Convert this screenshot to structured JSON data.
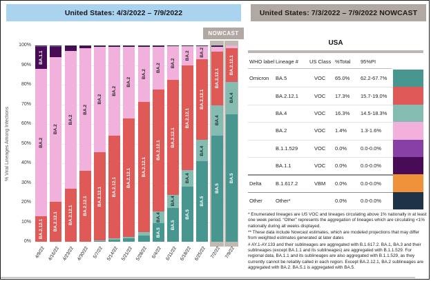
{
  "left_panel": {
    "header": "United States: 4/3/2022 – 7/9/2022",
    "nowcast_label": "NOWCAST",
    "y_axis_label": "% Viral Lineages Among Infections"
  },
  "chart_data": {
    "type": "bar",
    "stacked": true,
    "title": "United States: 4/3/2022 – 7/9/2022",
    "ylabel": "% Viral Lineages Among Infections",
    "ylim": [
      0,
      100
    ],
    "y_tick_step": 10,
    "grid": true,
    "legend_position": "labels inside bar segments",
    "categories": [
      "4/9/22",
      "4/16/22",
      "4/23/22",
      "4/30/22",
      "5/7/22",
      "5/14/22",
      "5/21/22",
      "5/28/22",
      "6/4/22",
      "6/11/22",
      "6/18/22",
      "6/25/22",
      "7/2/22",
      "7/9/22"
    ],
    "nowcast_highlighted_categories": [
      "7/2/22",
      "7/9/22"
    ],
    "label_min_pct": 5.8,
    "series": [
      {
        "name": "BA.5",
        "color": "#479790",
        "label_color": "#ffffff",
        "values": [
          0,
          0,
          0,
          0,
          0.4,
          1.0,
          1.6,
          3.2,
          9.5,
          17.3,
          28.0,
          40.9,
          54.0,
          65.0
        ]
      },
      {
        "name": "BA.4",
        "color": "#84bcb2",
        "label_color": "#1e3330",
        "values": [
          0,
          0,
          0,
          0,
          0.3,
          0.6,
          0.9,
          1.6,
          6.0,
          6.4,
          8.5,
          11.1,
          15.5,
          16.3
        ]
      },
      {
        "name": "BA.2.12.1",
        "color": "#df5956",
        "label_color": "#ffffff",
        "values": [
          13.0,
          20.5,
          27.0,
          36.0,
          45.0,
          52.4,
          60.4,
          66.4,
          62.0,
          58.8,
          53.4,
          41.0,
          27.5,
          17.3
        ]
      },
      {
        "name": "BA.2",
        "color": "#f1b1dc",
        "label_color": "#2a2a2a",
        "values": [
          75.0,
          73.7,
          70.3,
          62.7,
          53.5,
          45.5,
          36.7,
          28.4,
          22.1,
          17.3,
          9.9,
          6.9,
          2.7,
          1.4
        ]
      },
      {
        "name": "BA.1.1",
        "color": "#470c55",
        "label_color": "#ffffff",
        "values": [
          11.5,
          5.4,
          2.4,
          1.1,
          0.6,
          0.3,
          0.2,
          0.2,
          0.2,
          0.1,
          0.1,
          0.0,
          0.1,
          0.0
        ]
      },
      {
        "name": "B.1.1.529",
        "color": "#8740a5",
        "label_color": "#ffffff",
        "values": [
          0.3,
          0.2,
          0.2,
          0.1,
          0.1,
          0.1,
          0.1,
          0.1,
          0.1,
          0.0,
          0.0,
          0.0,
          0.1,
          0.0
        ]
      },
      {
        "name": "Other",
        "color": "#1e3347",
        "label_color": "#ffffff",
        "values": [
          0.2,
          0.2,
          0.1,
          0.1,
          0.1,
          0.1,
          0.1,
          0.1,
          0.1,
          0.1,
          0.1,
          0.1,
          0.1,
          0.0
        ]
      }
    ]
  },
  "right_panel": {
    "header": "United States: 7/3/2022 – 7/9/2022 NOWCAST",
    "table": {
      "region_title": "USA",
      "columns": [
        "WHO label",
        "Lineage #",
        "US Class",
        "%Total",
        "95%PI"
      ],
      "rows": [
        {
          "who_label": "Omicron",
          "lineage": "BA.5",
          "us_class": "VOC",
          "pct_total": "65.0%",
          "pi_95": "62.2-67.7%",
          "color": "#479790",
          "group_start": false
        },
        {
          "who_label": "",
          "lineage": "BA.2.12.1",
          "us_class": "VOC",
          "pct_total": "17.3%",
          "pi_95": "15.7-19.0%",
          "color": "#df5956",
          "group_start": false
        },
        {
          "who_label": "",
          "lineage": "BA.4",
          "us_class": "VOC",
          "pct_total": "16.3%",
          "pi_95": "14.5-18.3%",
          "color": "#84bcb2",
          "group_start": false
        },
        {
          "who_label": "",
          "lineage": "BA.2",
          "us_class": "VOC",
          "pct_total": "1.4%",
          "pi_95": "1.3-1.6%",
          "color": "#f1b1dc",
          "group_start": false
        },
        {
          "who_label": "",
          "lineage": "B.1.1.529",
          "us_class": "VOC",
          "pct_total": "0.0%",
          "pi_95": "0.0-0.0%",
          "color": "#8740a5",
          "group_start": false
        },
        {
          "who_label": "",
          "lineage": "BA.1.1",
          "us_class": "VOC",
          "pct_total": "0.0%",
          "pi_95": "0.0-0.0%",
          "color": "#470c55",
          "group_start": false
        },
        {
          "who_label": "Delta",
          "lineage": "B.1.617.2",
          "us_class": "VBM",
          "pct_total": "0.0%",
          "pi_95": "0.0-0.0%",
          "color": "#f0923a",
          "group_start": true
        },
        {
          "who_label": "Other",
          "lineage": "Other*",
          "us_class": "",
          "pct_total": "0.0%",
          "pi_95": "0.0-0.0%",
          "color": "#1e3347",
          "group_start": true
        }
      ]
    },
    "footnotes": [
      "*      Enumerated lineages are US VOC and lineages circulating above 1% nationally in at least one week period. “Other” represents the aggregation of lineages which are circulating <1% nationally during all weeks displayed.",
      "**     These data include Nowcast estimates, which are modeled projections that may differ from weighted estimates generated at later dates",
      "#      AY.1-AY.133 and their sublineages are aggregated with B.1.617.2. BA.1, BA.3 and their sublineages (except BA.1.1 and its sublineages) are aggregated with B.1.1.529. For regional data, BA.1.1 and its sublineages are also aggregated with B.1.1.529, as they currently cannot be reliably called in each region. Except BA.2.12.1, BA.2 sublineages are aggregated with BA.2. BA.5.1 is aggregated with BA.5."
    ]
  }
}
